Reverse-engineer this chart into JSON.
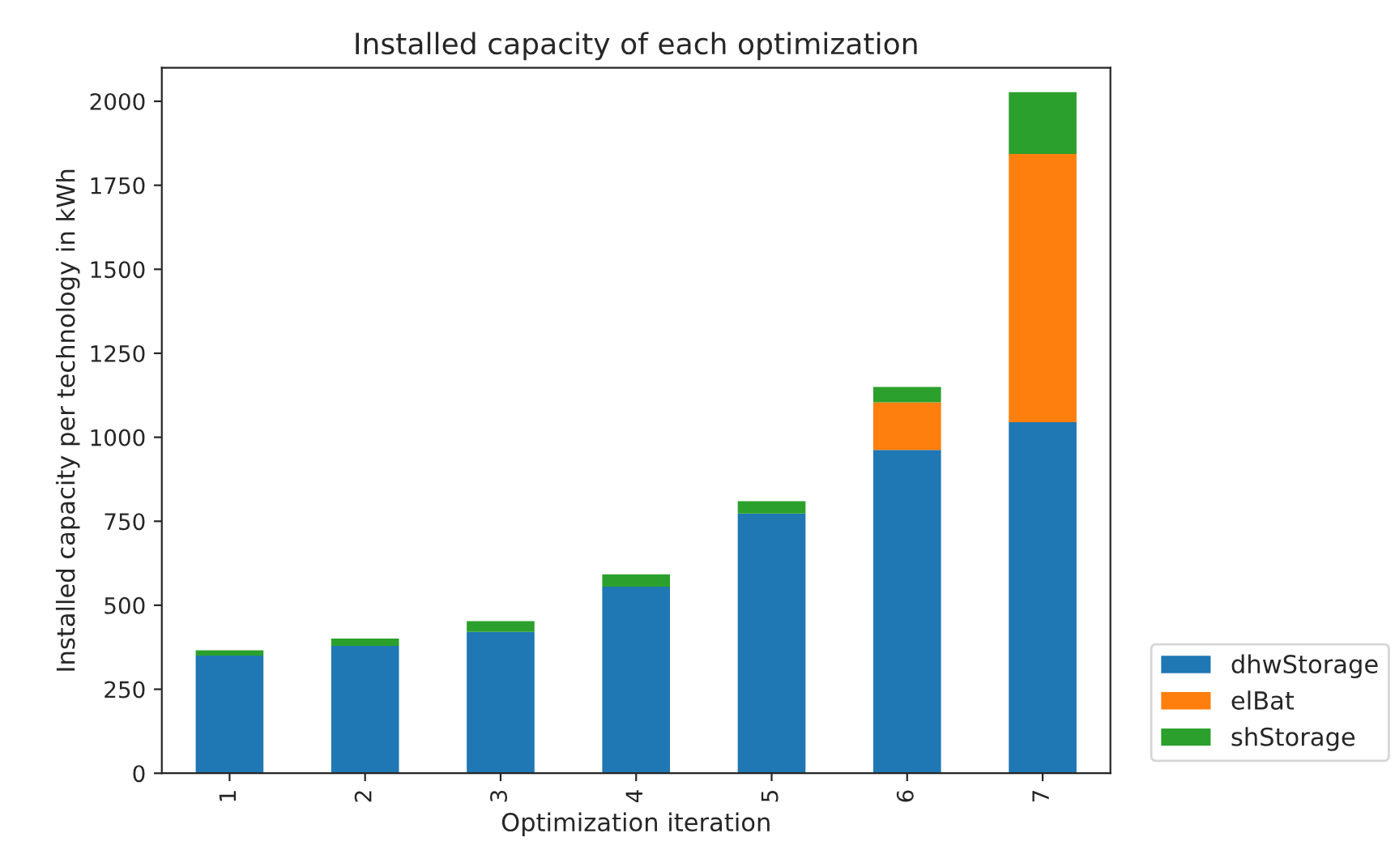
{
  "chart_data": {
    "type": "bar",
    "stacked": true,
    "title": "Installed capacity of each optimization",
    "xlabel": "Optimization iteration",
    "ylabel": "Installed capacity per technology in kWh",
    "categories": [
      "1",
      "2",
      "3",
      "4",
      "5",
      "6",
      "7"
    ],
    "series": [
      {
        "name": "dhwStorage",
        "color": "#1f77b4",
        "values": [
          350,
          379,
          421,
          555,
          773,
          962,
          1045
        ]
      },
      {
        "name": "elBat",
        "color": "#ff7f0e",
        "values": [
          0,
          0,
          0,
          0,
          0,
          142,
          798
        ]
      },
      {
        "name": "shStorage",
        "color": "#2ca02c",
        "values": [
          16,
          22,
          32,
          37,
          37,
          46,
          184
        ]
      }
    ],
    "ylim": [
      0,
      2100
    ],
    "yticks": [
      0,
      250,
      500,
      750,
      1000,
      1250,
      1500,
      1750,
      2000
    ],
    "grid": false,
    "legend": "bottom right"
  }
}
